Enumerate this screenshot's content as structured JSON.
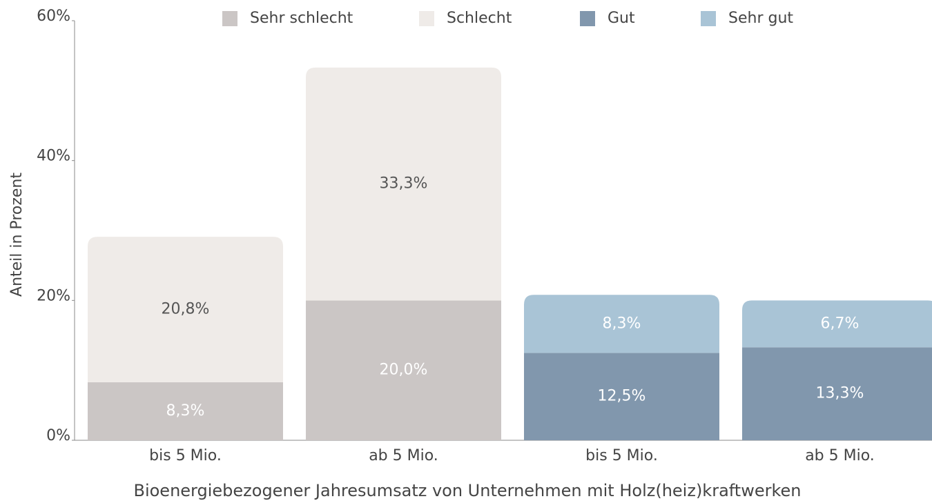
{
  "chart_data": {
    "type": "stacked_bar",
    "categories": [
      "bis 5 Mio.",
      "ab 5 Mio.",
      "bis 5 Mio.",
      "ab 5 Mio."
    ],
    "series": [
      {
        "name": "Sehr schlecht",
        "color": "#cbc6c5",
        "label_color": "#ffffff",
        "values": [
          8.3,
          20.0,
          null,
          null
        ],
        "value_labels": [
          "8,3%",
          "20,0%",
          null,
          null
        ]
      },
      {
        "name": "Schlecht",
        "color": "#efebe8",
        "label_color": "#555555",
        "values": [
          20.8,
          33.3,
          null,
          null
        ],
        "value_labels": [
          "20,8%",
          "33,3%",
          null,
          null
        ]
      },
      {
        "name": "Gut",
        "color": "#8197ad",
        "label_color": "#ffffff",
        "values": [
          null,
          null,
          12.5,
          13.3
        ],
        "value_labels": [
          null,
          null,
          "12,5%",
          "13,3%"
        ]
      },
      {
        "name": "Sehr gut",
        "color": "#a9c4d6",
        "label_color": "#ffffff",
        "values": [
          null,
          null,
          8.3,
          6.7
        ],
        "value_labels": [
          null,
          null,
          "8,3%",
          "6,7%"
        ]
      }
    ],
    "ylim": [
      0,
      60
    ],
    "yticks": [
      {
        "value": 0,
        "label": "0%"
      },
      {
        "value": 20,
        "label": "20%"
      },
      {
        "value": 40,
        "label": "40%"
      },
      {
        "value": 60,
        "label": "60%"
      }
    ],
    "y_label": "Anteil in Prozent",
    "x_label": "Bioenergiebezogener Jahresumsatz von Unternehmen mit Holz(heiz)kraftwerken",
    "legend": "top"
  }
}
